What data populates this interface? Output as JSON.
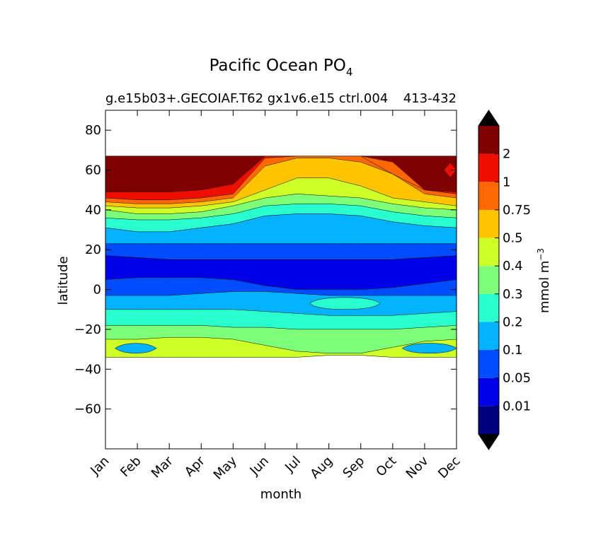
{
  "chart_data": {
    "type": "contour",
    "title": "Pacific Ocean PO",
    "title_subscript": "4",
    "subtitle_left": "g.e15b03+.GECOIAF.T62 gx1v6.e15 ctrl.004",
    "subtitle_right": "413-432",
    "xlabel": "month",
    "ylabel": "latitude",
    "x_categories": [
      "Jan",
      "Feb",
      "Mar",
      "Apr",
      "May",
      "Jun",
      "Jul",
      "Aug",
      "Sep",
      "Oct",
      "Nov",
      "Dec"
    ],
    "ylim": [
      -80,
      90
    ],
    "yticks": [
      80,
      60,
      40,
      20,
      0,
      -20,
      -40,
      -60
    ],
    "ytick_labels": [
      "80",
      "60",
      "40",
      "20",
      "0",
      "−20",
      "−40",
      "−60"
    ],
    "data_lat_range": [
      -34,
      67
    ],
    "colorbar": {
      "label": "mmol m",
      "label_exponent": "−3",
      "extend": "both",
      "tick_labels": [
        "0.01",
        "0.05",
        "0.1",
        "0.2",
        "0.3",
        "0.4",
        "0.5",
        "0.75",
        "1",
        "2"
      ],
      "level_colors": [
        "#00007f",
        "#0000e6",
        "#004cff",
        "#00b2ff",
        "#29ffce",
        "#7dff7a",
        "#ceff29",
        "#ffc400",
        "#ff6800",
        "#ef0f00",
        "#7f0000"
      ],
      "under_color": "#000000",
      "over_color": "#000000"
    },
    "contour_boundaries": [
      {
        "between": [
          10,
          9
        ],
        "lat": [
          49,
          49,
          49,
          50,
          53,
          67,
          67,
          67,
          67,
          58,
          50,
          49
        ]
      },
      {
        "between": [
          9,
          8
        ],
        "lat": [
          46,
          45,
          45,
          46,
          48,
          66,
          67,
          67,
          67,
          64,
          50,
          48
        ]
      },
      {
        "between": [
          8,
          7
        ],
        "lat": [
          44,
          43,
          43,
          44,
          46,
          62,
          66,
          66,
          64,
          58,
          48,
          46
        ]
      },
      {
        "between": [
          7,
          6
        ],
        "lat": [
          42,
          41,
          41,
          42,
          44,
          50,
          56,
          56,
          52,
          46,
          44,
          42
        ]
      },
      {
        "between": [
          6,
          5
        ],
        "lat": [
          40,
          38,
          38,
          39,
          42,
          46,
          48,
          47,
          46,
          43,
          41,
          40
        ]
      },
      {
        "between": [
          5,
          4
        ],
        "lat": [
          36,
          35,
          35,
          36,
          38,
          42,
          43,
          43,
          42,
          39,
          37,
          36
        ]
      },
      {
        "between": [
          4,
          3
        ],
        "lat": [
          31,
          29,
          29,
          31,
          33,
          37,
          38,
          38,
          37,
          34,
          32,
          31
        ]
      },
      {
        "between": [
          3,
          2
        ],
        "lat": [
          23,
          23,
          23,
          23,
          23,
          23,
          23,
          23,
          23,
          23,
          23,
          23
        ]
      },
      {
        "between": [
          2,
          1
        ],
        "lat": [
          17,
          16,
          15,
          15,
          15,
          15,
          15,
          15,
          15,
          15,
          16,
          17
        ]
      },
      {
        "between": [
          1,
          2
        ],
        "lat": [
          5,
          6,
          6,
          6,
          5,
          2,
          0,
          0,
          0,
          1,
          3,
          5
        ]
      },
      {
        "between": [
          2,
          3
        ],
        "lat": [
          -3,
          -3,
          -3,
          -2,
          -1,
          -1,
          -2,
          -3,
          -3,
          -3,
          -3,
          -3
        ]
      },
      {
        "between": [
          3,
          4
        ],
        "lat": [
          -10,
          -10,
          -10,
          -10,
          -10,
          -11,
          -12,
          -13,
          -13,
          -13,
          -12,
          -11
        ]
      },
      {
        "between": [
          4,
          5
        ],
        "lat": [
          -18,
          -18,
          -18,
          -18,
          -19,
          -19,
          -20,
          -20,
          -20,
          -20,
          -19,
          -18
        ]
      },
      {
        "between": [
          5,
          6
        ],
        "lat": [
          -25,
          -25,
          -24,
          -24,
          -25,
          -28,
          -31,
          -32,
          -32,
          -29,
          -26,
          -25
        ]
      },
      {
        "between": [
          6,
          7
        ],
        "lat": [
          -34,
          -34,
          -34,
          -34,
          -34,
          -34,
          -34,
          -33,
          -33,
          -34,
          -34,
          -34
        ]
      }
    ],
    "band_levels": [
      10,
      9,
      8,
      7,
      6,
      5,
      4,
      3,
      2,
      1,
      2,
      3,
      4,
      5,
      6
    ],
    "secondary_patches": [
      {
        "level": 4,
        "x": [
          6.4,
          8.6
        ],
        "lat": [
          -10,
          -4
        ]
      },
      {
        "level": 3,
        "x": [
          0.3,
          1.6
        ],
        "lat": [
          -32,
          -27
        ]
      },
      {
        "level": 3,
        "x": [
          9.3,
          11.0
        ],
        "lat": [
          -32,
          -27
        ]
      },
      {
        "level": 9,
        "x": [
          10.6,
          11.0
        ],
        "lat": [
          56,
          64
        ]
      }
    ]
  }
}
